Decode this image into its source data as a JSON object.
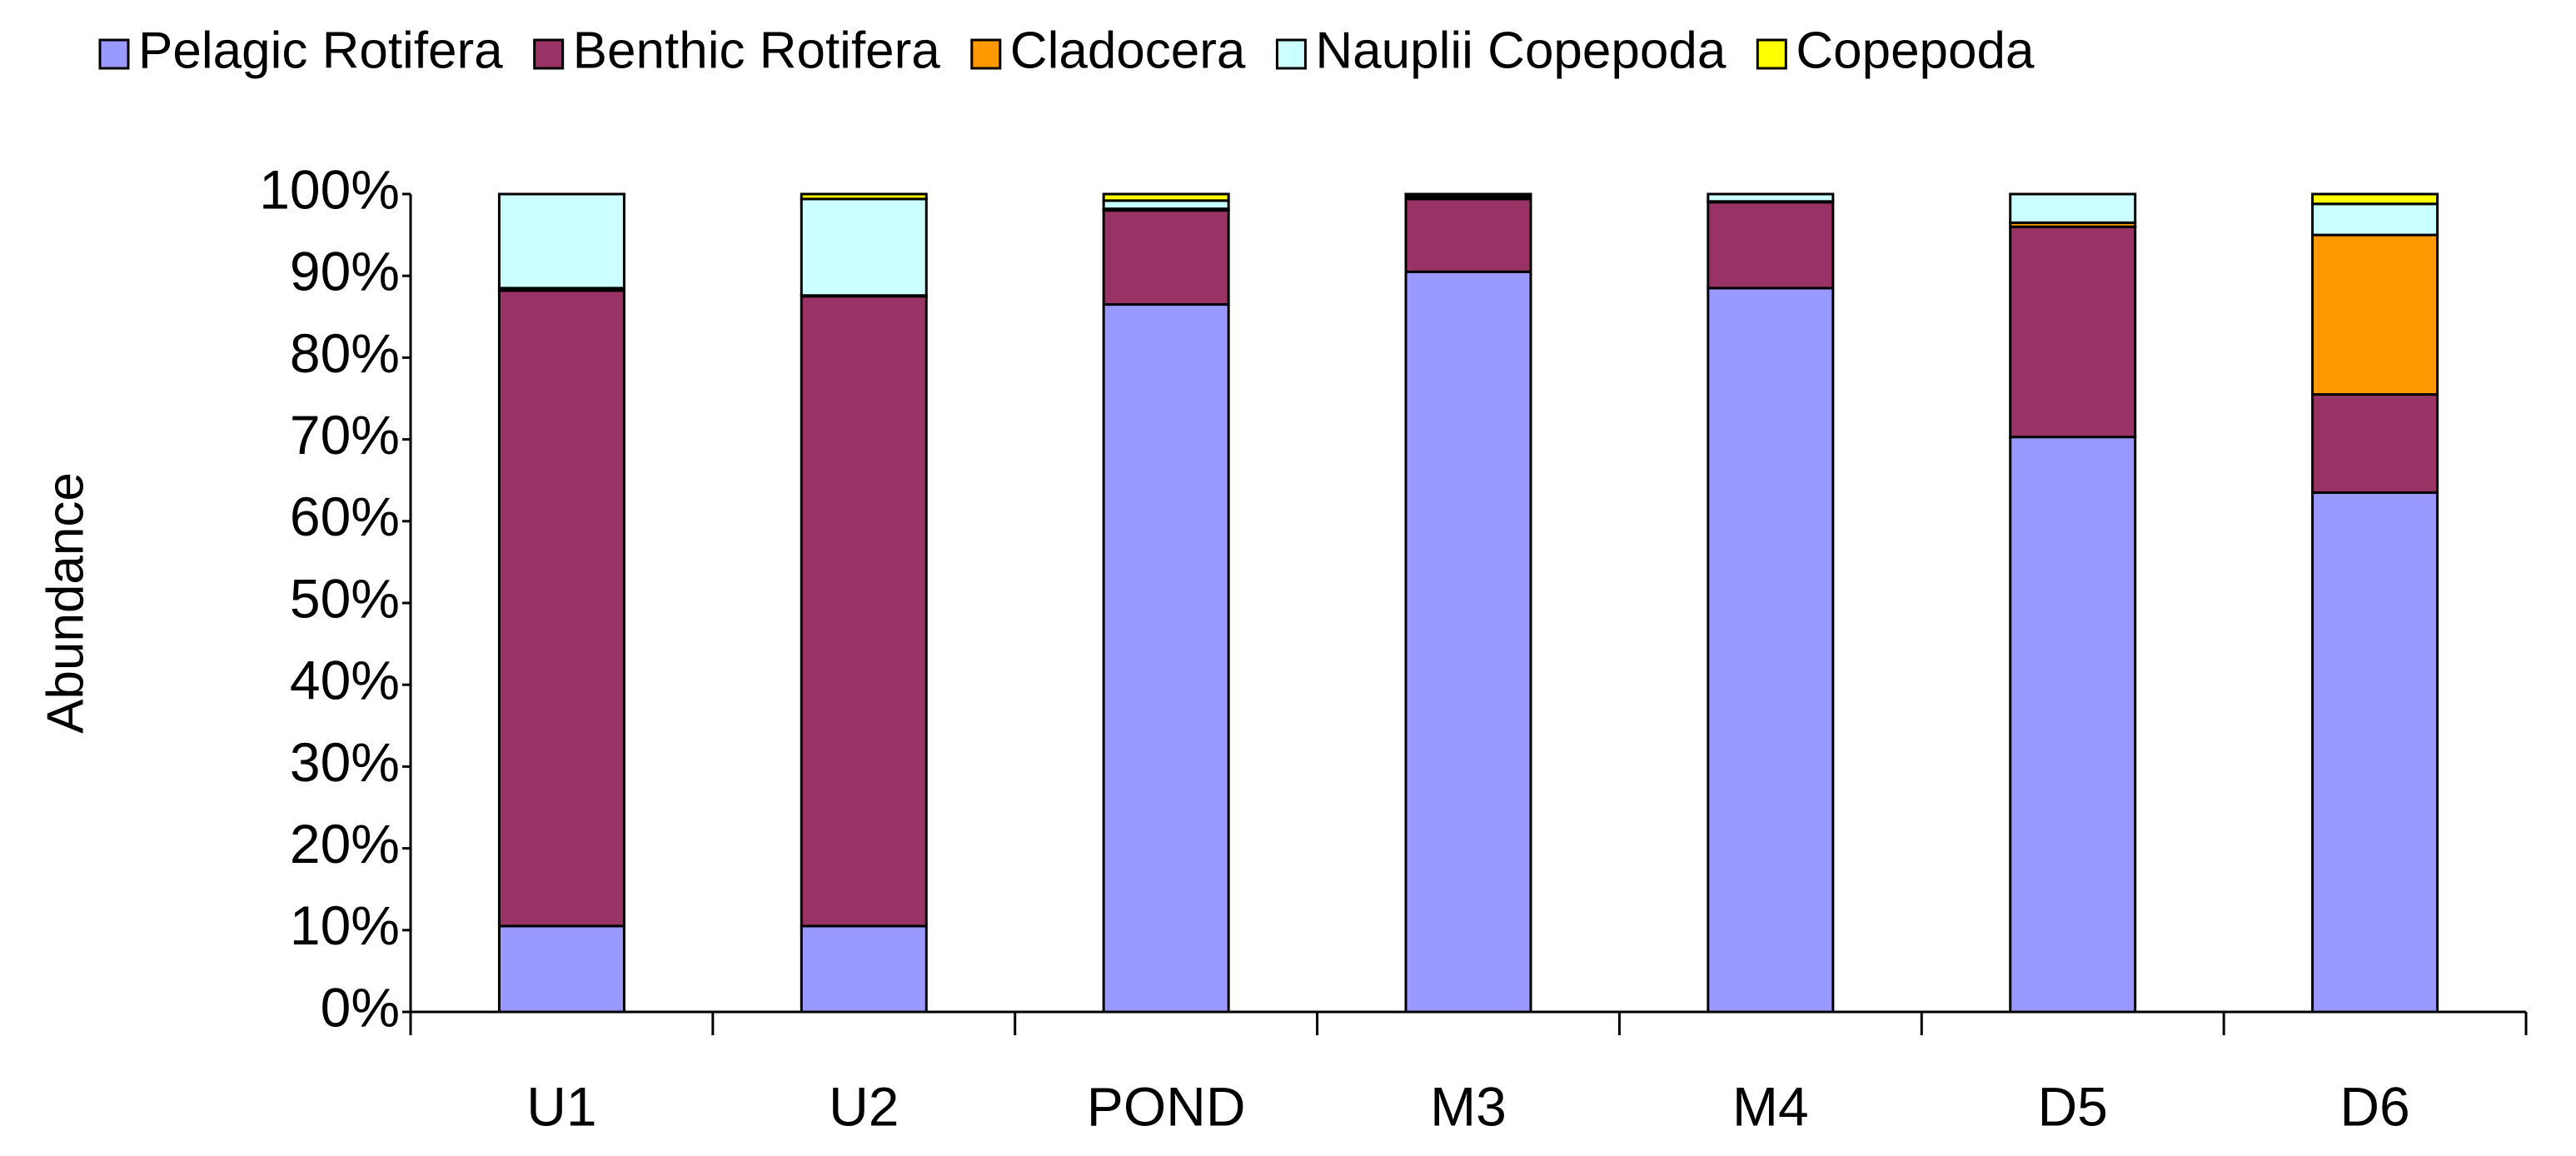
{
  "chart_data": {
    "type": "stacked_bar",
    "y_label": "Abundance",
    "categories": [
      "U1",
      "U2",
      "POND",
      "M3",
      "M4",
      "D5",
      "D6"
    ],
    "series": [
      {
        "name": "Pelagic Rotifera",
        "color": "#9999ff",
        "values": [
          10.5,
          10.5,
          86.5,
          90.5,
          88.5,
          70.3,
          63.5
        ]
      },
      {
        "name": "Benthic Rotifera",
        "color": "#993366",
        "values": [
          77.7,
          77.0,
          11.5,
          8.9,
          10.5,
          25.7,
          12.0
        ]
      },
      {
        "name": "Cladocera",
        "color": "#ff9900",
        "values": [
          0.3,
          0.1,
          0.2,
          0.1,
          0.1,
          0.5,
          19.5
        ]
      },
      {
        "name": "Nauplii Copepoda",
        "color": "#ccffff",
        "values": [
          11.5,
          11.8,
          1.0,
          0.3,
          0.9,
          3.5,
          3.8
        ]
      },
      {
        "name": "Copepoda",
        "color": "#ffff00",
        "values": [
          0.0,
          0.6,
          0.8,
          0.2,
          0.0,
          0.0,
          1.2
        ]
      }
    ],
    "ylim": [
      0,
      100
    ],
    "yticks": [
      {
        "value": 0,
        "label": "0%"
      },
      {
        "value": 10,
        "label": "10%"
      },
      {
        "value": 20,
        "label": "20%"
      },
      {
        "value": 30,
        "label": "30%"
      },
      {
        "value": 40,
        "label": "40%"
      },
      {
        "value": 50,
        "label": "50%"
      },
      {
        "value": 60,
        "label": "60%"
      },
      {
        "value": 70,
        "label": "70%"
      },
      {
        "value": 80,
        "label": "80%"
      },
      {
        "value": 90,
        "label": "90%"
      },
      {
        "value": 100,
        "label": "100%"
      }
    ],
    "grid": false,
    "legend": "top"
  }
}
